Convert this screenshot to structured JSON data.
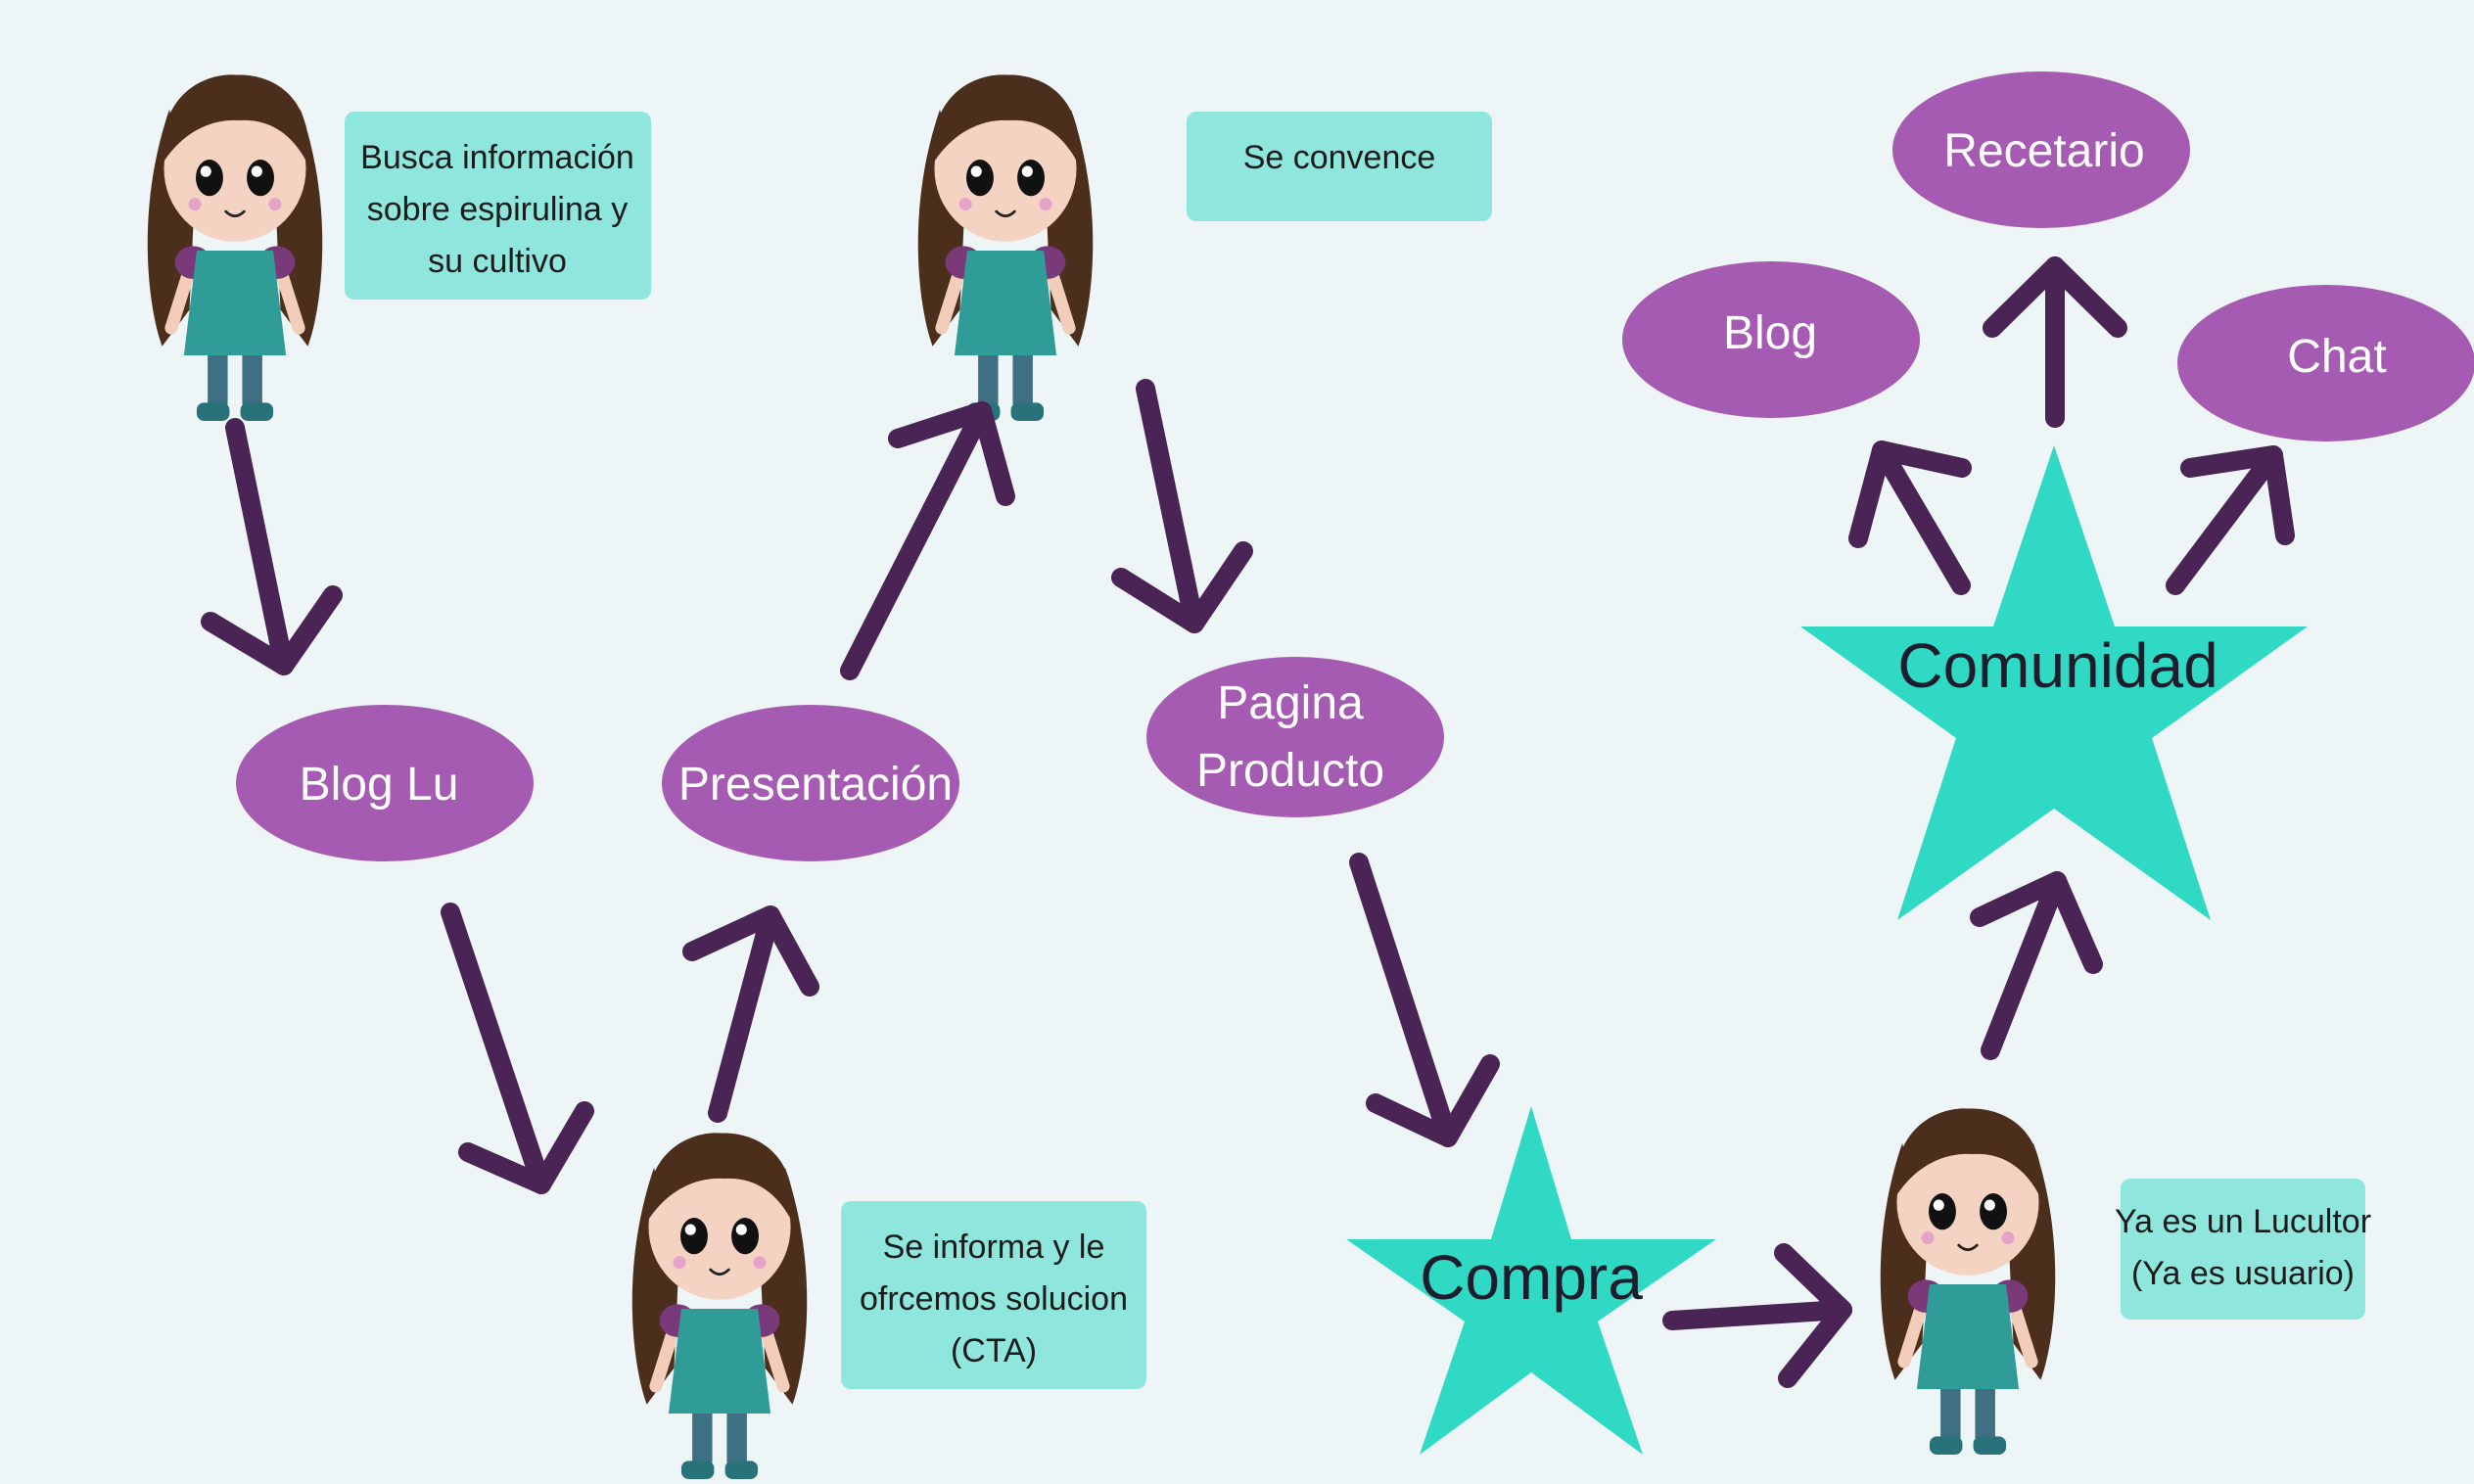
{
  "colors": {
    "background": "#edf5f6",
    "note_box": "#8fe6dc",
    "oval": "#a65bb3",
    "star": "#30d9c4",
    "arrow": "#4a2454"
  },
  "notes": {
    "busca": [
      "Busca información",
      "sobre espirulina y",
      "su cultivo"
    ],
    "convence": [
      "Se convence"
    ],
    "informa": [
      "Se informa y le",
      "ofrcemos solucion",
      "(CTA)"
    ],
    "lucultor": [
      "Ya es un Lucultor",
      "(Ya es usuario)"
    ]
  },
  "ovals": {
    "blog_lu": [
      "Blog Lu"
    ],
    "presentacion": [
      "Presentación"
    ],
    "pagina_producto": [
      "Pagina",
      "Producto"
    ],
    "recetario": [
      "Recetario"
    ],
    "blog": [
      "Blog"
    ],
    "chat": [
      "Chat"
    ]
  },
  "stars": {
    "compra": "Compra",
    "comunidad": "Comunidad"
  },
  "icons": {
    "character": "girl-character-icon"
  }
}
